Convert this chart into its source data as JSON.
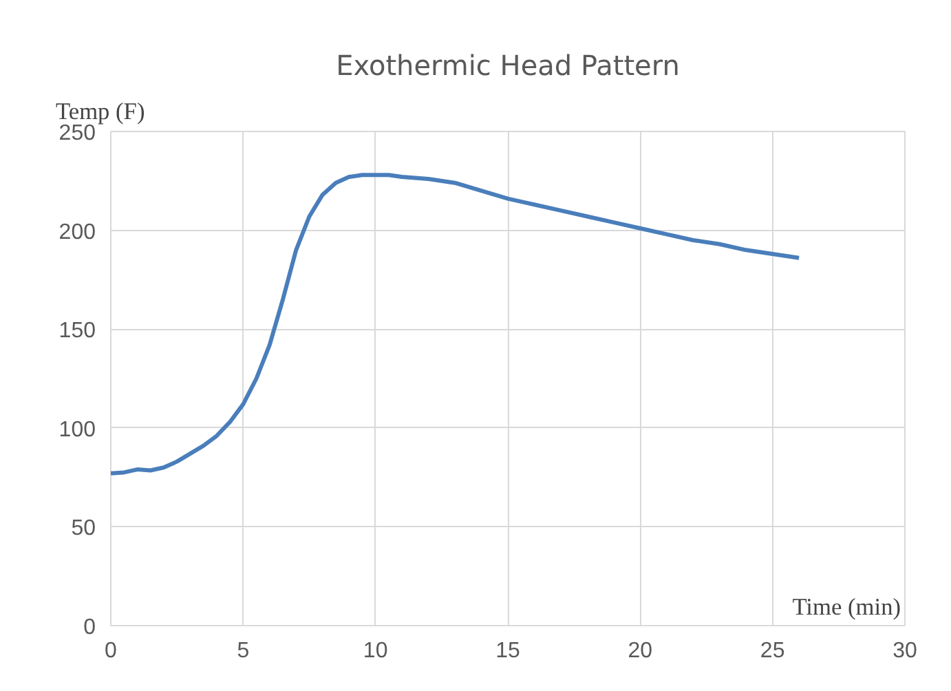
{
  "chart_data": {
    "type": "line",
    "title": "Exothermic Head Pattern",
    "xlabel": "Time (min)",
    "ylabel": "Temp (F)",
    "x": [
      0,
      0.5,
      1,
      1.5,
      2,
      2.5,
      3,
      3.5,
      4,
      4.5,
      5,
      5.5,
      6,
      6.5,
      7,
      7.5,
      8,
      8.5,
      9,
      9.5,
      10,
      10.5,
      11,
      12,
      13,
      14,
      15,
      16,
      17,
      18,
      19,
      20,
      21,
      22,
      23,
      24,
      25,
      26
    ],
    "series": [
      {
        "color": "#4a7ebb",
        "values": [
          77,
          77.5,
          79,
          78.5,
          80,
          83,
          87,
          91,
          96,
          103,
          112,
          125,
          142,
          165,
          190,
          207,
          218,
          224,
          227,
          228,
          228,
          228,
          227,
          226,
          224,
          220,
          216,
          213,
          210,
          207,
          204,
          201,
          198,
          195,
          193,
          190,
          188,
          186
        ]
      }
    ],
    "xlim": [
      0,
      30
    ],
    "ylim": [
      0,
      250
    ],
    "xticks": [
      0,
      5,
      10,
      15,
      20,
      25,
      30
    ],
    "yticks": [
      0,
      50,
      100,
      150,
      200,
      250
    ],
    "grid": true,
    "marker": "none",
    "line_style": "solid"
  }
}
